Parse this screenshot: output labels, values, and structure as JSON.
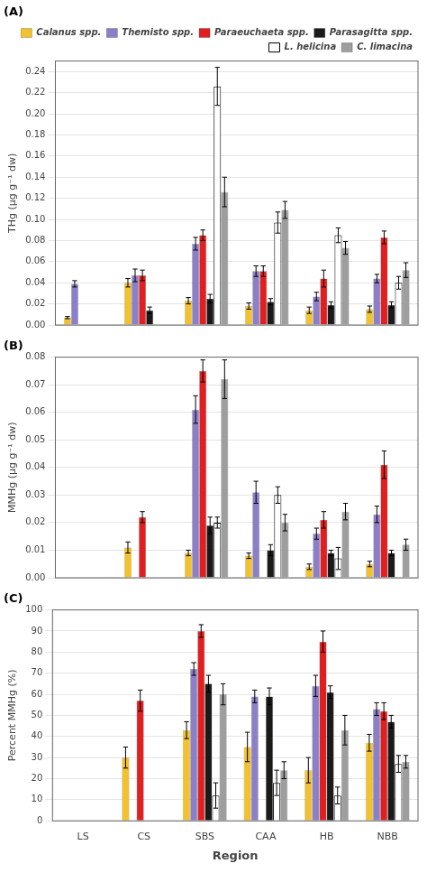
{
  "chart_data": [
    {
      "type": "bar",
      "title": "(A)",
      "ylabel": "THg (μg g⁻¹ dw)",
      "categories": [
        "LS",
        "CS",
        "SBS",
        "CAA",
        "HB",
        "NBB"
      ],
      "series": [
        {
          "name": "Calanus spp.",
          "color": "#f2c12e",
          "values": [
            0.007,
            0.04,
            0.023,
            0.018,
            0.014,
            0.015
          ],
          "errors": [
            0.001,
            0.004,
            0.003,
            0.003,
            0.003,
            0.003
          ]
        },
        {
          "name": "Themisto spp.",
          "color": "#8b80c8",
          "values": [
            0.039,
            0.047,
            0.077,
            0.051,
            0.027,
            0.044
          ],
          "errors": [
            0.003,
            0.006,
            0.006,
            0.005,
            0.004,
            0.004
          ]
        },
        {
          "name": "Paraeuchaeta spp.",
          "color": "#e02020",
          "values": [
            null,
            0.047,
            0.085,
            0.051,
            0.044,
            0.083
          ],
          "errors": [
            null,
            0.005,
            0.005,
            0.005,
            0.008,
            0.006
          ]
        },
        {
          "name": "Parasagitta spp.",
          "color": "#1a1a1a",
          "values": [
            null,
            0.014,
            0.025,
            0.022,
            0.019,
            0.019
          ],
          "errors": [
            null,
            0.003,
            0.004,
            0.003,
            0.003,
            0.003
          ]
        },
        {
          "name": "L. helicina",
          "color": "#ffffff",
          "values": [
            null,
            null,
            0.226,
            0.097,
            0.085,
            0.04
          ],
          "errors": [
            null,
            null,
            0.018,
            0.01,
            0.007,
            0.006
          ]
        },
        {
          "name": "C. limacina",
          "color": "#9e9e9e",
          "values": [
            null,
            null,
            0.126,
            0.109,
            0.073,
            0.052
          ],
          "errors": [
            null,
            null,
            0.014,
            0.008,
            0.006,
            0.007
          ]
        }
      ],
      "ylim": [
        0,
        0.25
      ],
      "yticks": [
        {
          "value": 0,
          "label": "0.00"
        },
        0.02,
        0.04,
        0.06,
        0.08,
        {
          "value": 0.1,
          "label": "0.10"
        },
        0.12,
        0.14,
        0.16,
        0.18,
        {
          "value": 0.2,
          "label": "0.20"
        },
        0.22,
        0.24
      ],
      "grid": true,
      "legend": "upper right",
      "tick_labels": "y"
    },
    {
      "type": "bar",
      "title": "(B)",
      "ylabel": "MMHg (μg g⁻¹ dw)",
      "categories": [
        "LS",
        "CS",
        "SBS",
        "CAA",
        "HB",
        "NBB"
      ],
      "series": [
        {
          "name": "Calanus spp.",
          "color": "#f2c12e",
          "values": [
            null,
            0.011,
            0.009,
            0.008,
            0.004,
            0.005
          ],
          "errors": [
            null,
            0.002,
            0.001,
            0.001,
            0.001,
            0.001
          ]
        },
        {
          "name": "Themisto spp.",
          "color": "#8b80c8",
          "values": [
            null,
            null,
            0.061,
            0.031,
            0.016,
            0.023
          ],
          "errors": [
            null,
            null,
            0.005,
            0.004,
            0.002,
            0.003
          ]
        },
        {
          "name": "Paraeuchaeta spp.",
          "color": "#e02020",
          "values": [
            null,
            0.022,
            0.075,
            null,
            0.021,
            0.041
          ],
          "errors": [
            null,
            0.002,
            0.004,
            null,
            0.003,
            0.005
          ]
        },
        {
          "name": "Parasagitta spp.",
          "color": "#1a1a1a",
          "values": [
            null,
            null,
            0.019,
            0.01,
            0.009,
            0.009
          ],
          "errors": [
            null,
            null,
            0.003,
            0.002,
            0.001,
            0.001
          ]
        },
        {
          "name": "L. helicina",
          "color": "#ffffff",
          "values": [
            null,
            null,
            0.02,
            0.03,
            0.007,
            null
          ],
          "errors": [
            null,
            null,
            0.002,
            0.003,
            0.004,
            null
          ]
        },
        {
          "name": "C. limacina",
          "color": "#9e9e9e",
          "values": [
            null,
            null,
            0.072,
            0.02,
            0.024,
            0.012
          ],
          "errors": [
            null,
            null,
            0.007,
            0.003,
            0.003,
            0.002
          ]
        }
      ],
      "ylim": [
        0,
        0.08
      ],
      "yticks": [
        {
          "value": 0,
          "label": "0.00"
        },
        0.01,
        0.02,
        0.03,
        0.04,
        0.05,
        0.06,
        0.07,
        0.08
      ],
      "grid": true,
      "tick_labels": "y"
    },
    {
      "type": "bar",
      "title": "(C)",
      "xlabel": "Region",
      "ylabel": "Percent MMHg (%)",
      "categories": [
        "LS",
        "CS",
        "SBS",
        "CAA",
        "HB",
        "NBB"
      ],
      "series": [
        {
          "name": "Calanus spp.",
          "color": "#f2c12e",
          "values": [
            null,
            30,
            43,
            35,
            24,
            37
          ],
          "errors": [
            null,
            5,
            4,
            7,
            6,
            4
          ]
        },
        {
          "name": "Themisto spp.",
          "color": "#8b80c8",
          "values": [
            null,
            null,
            72,
            59,
            64,
            53
          ],
          "errors": [
            null,
            null,
            3,
            3,
            5,
            3
          ]
        },
        {
          "name": "Paraeuchaeta spp.",
          "color": "#e02020",
          "values": [
            null,
            57,
            90,
            null,
            85,
            52
          ],
          "errors": [
            null,
            5,
            3,
            null,
            5,
            4
          ]
        },
        {
          "name": "Parasagitta spp.",
          "color": "#1a1a1a",
          "values": [
            null,
            null,
            65,
            59,
            61,
            47
          ],
          "errors": [
            null,
            null,
            4,
            4,
            3,
            3
          ]
        },
        {
          "name": "L. helicina",
          "color": "#ffffff",
          "values": [
            null,
            null,
            12,
            18,
            12,
            27
          ],
          "errors": [
            null,
            null,
            6,
            6,
            4,
            4
          ]
        },
        {
          "name": "C. limacina",
          "color": "#9e9e9e",
          "values": [
            null,
            null,
            60,
            24,
            43,
            28
          ],
          "errors": [
            null,
            null,
            5,
            4,
            7,
            3
          ]
        }
      ],
      "ylim": [
        0,
        100
      ],
      "yticks": [
        0,
        10,
        20,
        30,
        40,
        50,
        60,
        70,
        80,
        90,
        100
      ],
      "grid": true
    }
  ]
}
